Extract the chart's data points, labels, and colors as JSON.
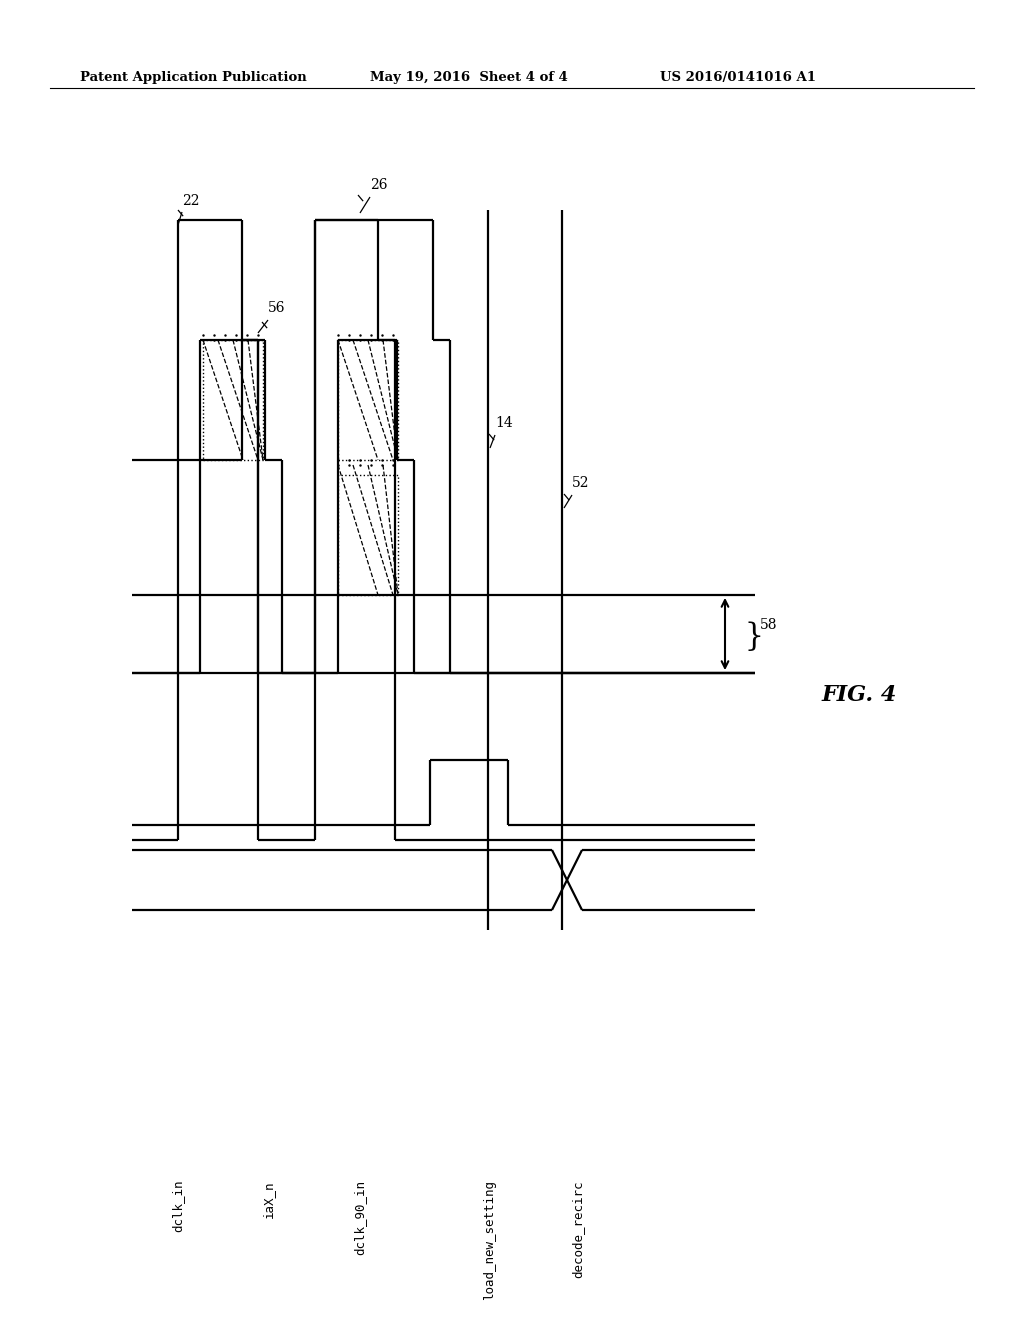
{
  "header_left": "Patent Application Publication",
  "header_mid": "May 19, 2016  Sheet 4 of 4",
  "header_right": "US 2016/0141016 A1",
  "fig_label": "FIG. 4",
  "signal_labels": [
    "dclk_in",
    "iaX_n",
    "dclk_90_in",
    "load_new_setting",
    "decode_recirc"
  ],
  "background": "#ffffff",
  "line_color": "#000000",
  "lw": 1.6
}
